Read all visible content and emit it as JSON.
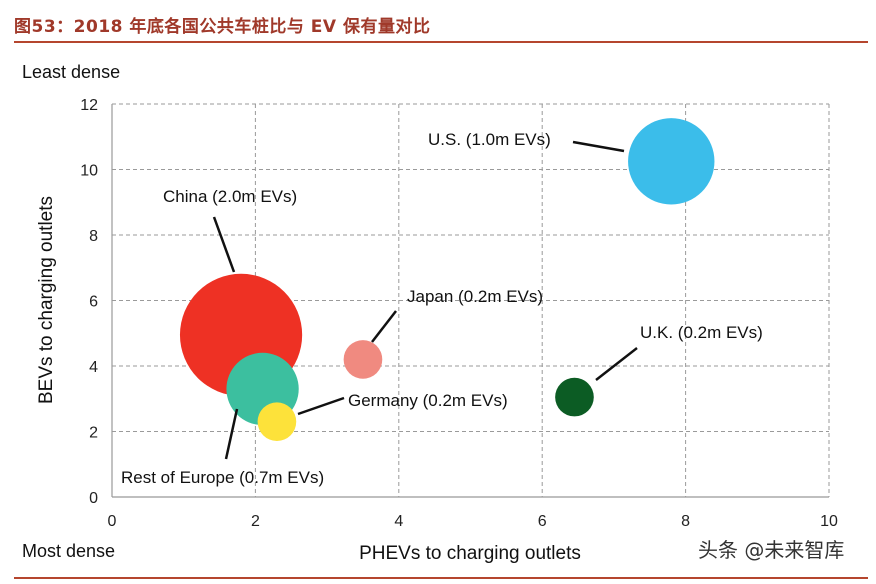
{
  "figure": {
    "title": "图53：2018 年底各国公共车桩比与 EV 保有量对比",
    "watermark": "头条 @未来智库"
  },
  "chart_data": {
    "type": "scatter",
    "subtype": "bubble",
    "title": "",
    "xlabel": "PHEVs to charging outlets",
    "ylabel": "BEVs to charging outlets",
    "xlim": [
      0,
      10
    ],
    "ylim": [
      0,
      12
    ],
    "xticks": [
      0,
      2,
      4,
      6,
      8,
      10
    ],
    "yticks": [
      0,
      2,
      4,
      6,
      8,
      10,
      12
    ],
    "grid": true,
    "corner_labels": {
      "top": "Least dense",
      "bottom": "Most dense"
    },
    "size_unit": "m EVs",
    "series": [
      {
        "name": "China",
        "label": "China (2.0m EVs)",
        "x": 1.8,
        "y": 4.95,
        "size": 2.0,
        "color": "#ee3124"
      },
      {
        "name": "Rest of Europe",
        "label": "Rest of Europe (0.7m EVs)",
        "x": 2.1,
        "y": 3.3,
        "size": 0.7,
        "color": "#3cbf9f"
      },
      {
        "name": "U.S.",
        "label": "U.S. (1.0m EVs)",
        "x": 7.8,
        "y": 10.25,
        "size": 1.0,
        "color": "#3bbdea"
      },
      {
        "name": "Japan",
        "label": "Japan (0.2m EVs)",
        "x": 3.5,
        "y": 4.2,
        "size": 0.2,
        "color": "#f08a80"
      },
      {
        "name": "Germany",
        "label": "Germany (0.2m EVs)",
        "x": 2.3,
        "y": 2.3,
        "size": 0.2,
        "color": "#fde23a"
      },
      {
        "name": "U.K.",
        "label": "U.K. (0.2m EVs)",
        "x": 6.45,
        "y": 3.05,
        "size": 0.2,
        "color": "#0c5c24"
      }
    ]
  }
}
